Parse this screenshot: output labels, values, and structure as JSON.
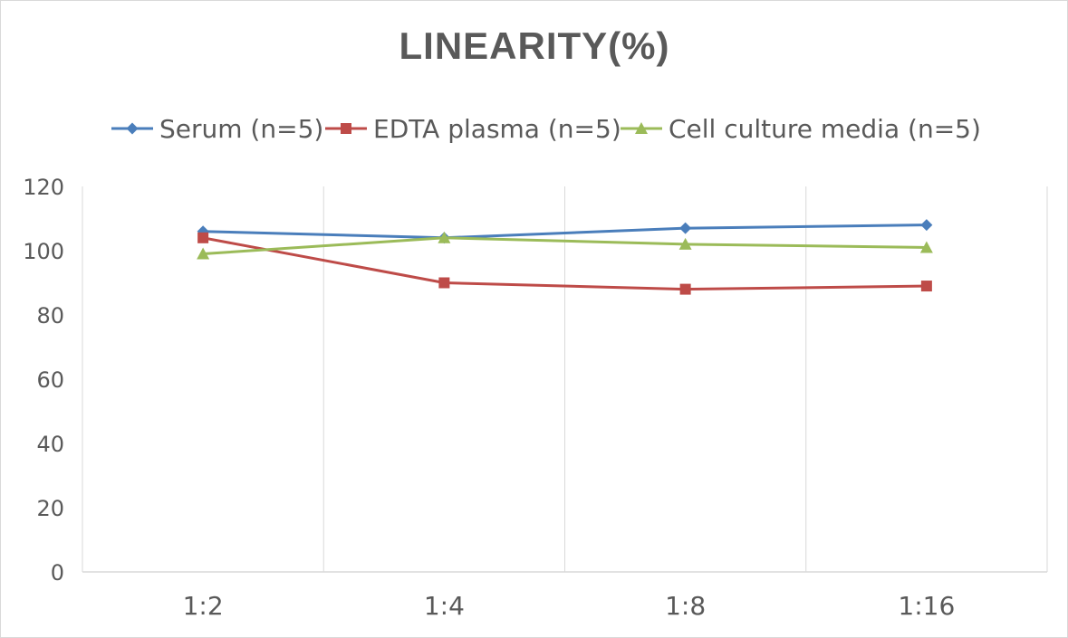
{
  "chart_data": {
    "type": "line",
    "title": "LINEARITY(%)",
    "categories": [
      "1:2",
      "1:4",
      "1:8",
      "1:16"
    ],
    "ylim": [
      0,
      120
    ],
    "yticks": [
      0,
      20,
      40,
      60,
      80,
      100,
      120
    ],
    "grid": "vertical",
    "legend_position": "top",
    "series": [
      {
        "name": "Serum (n=5)",
        "values": [
          106,
          104,
          107,
          108
        ],
        "color": "#4a7ebb",
        "marker": "diamond"
      },
      {
        "name": "EDTA plasma (n=5)",
        "values": [
          104,
          90,
          88,
          89
        ],
        "color": "#be4b48",
        "marker": "square"
      },
      {
        "name": "Cell culture media (n=5)",
        "values": [
          99,
          104,
          102,
          101
        ],
        "color": "#9bbb59",
        "marker": "triangle"
      }
    ]
  }
}
